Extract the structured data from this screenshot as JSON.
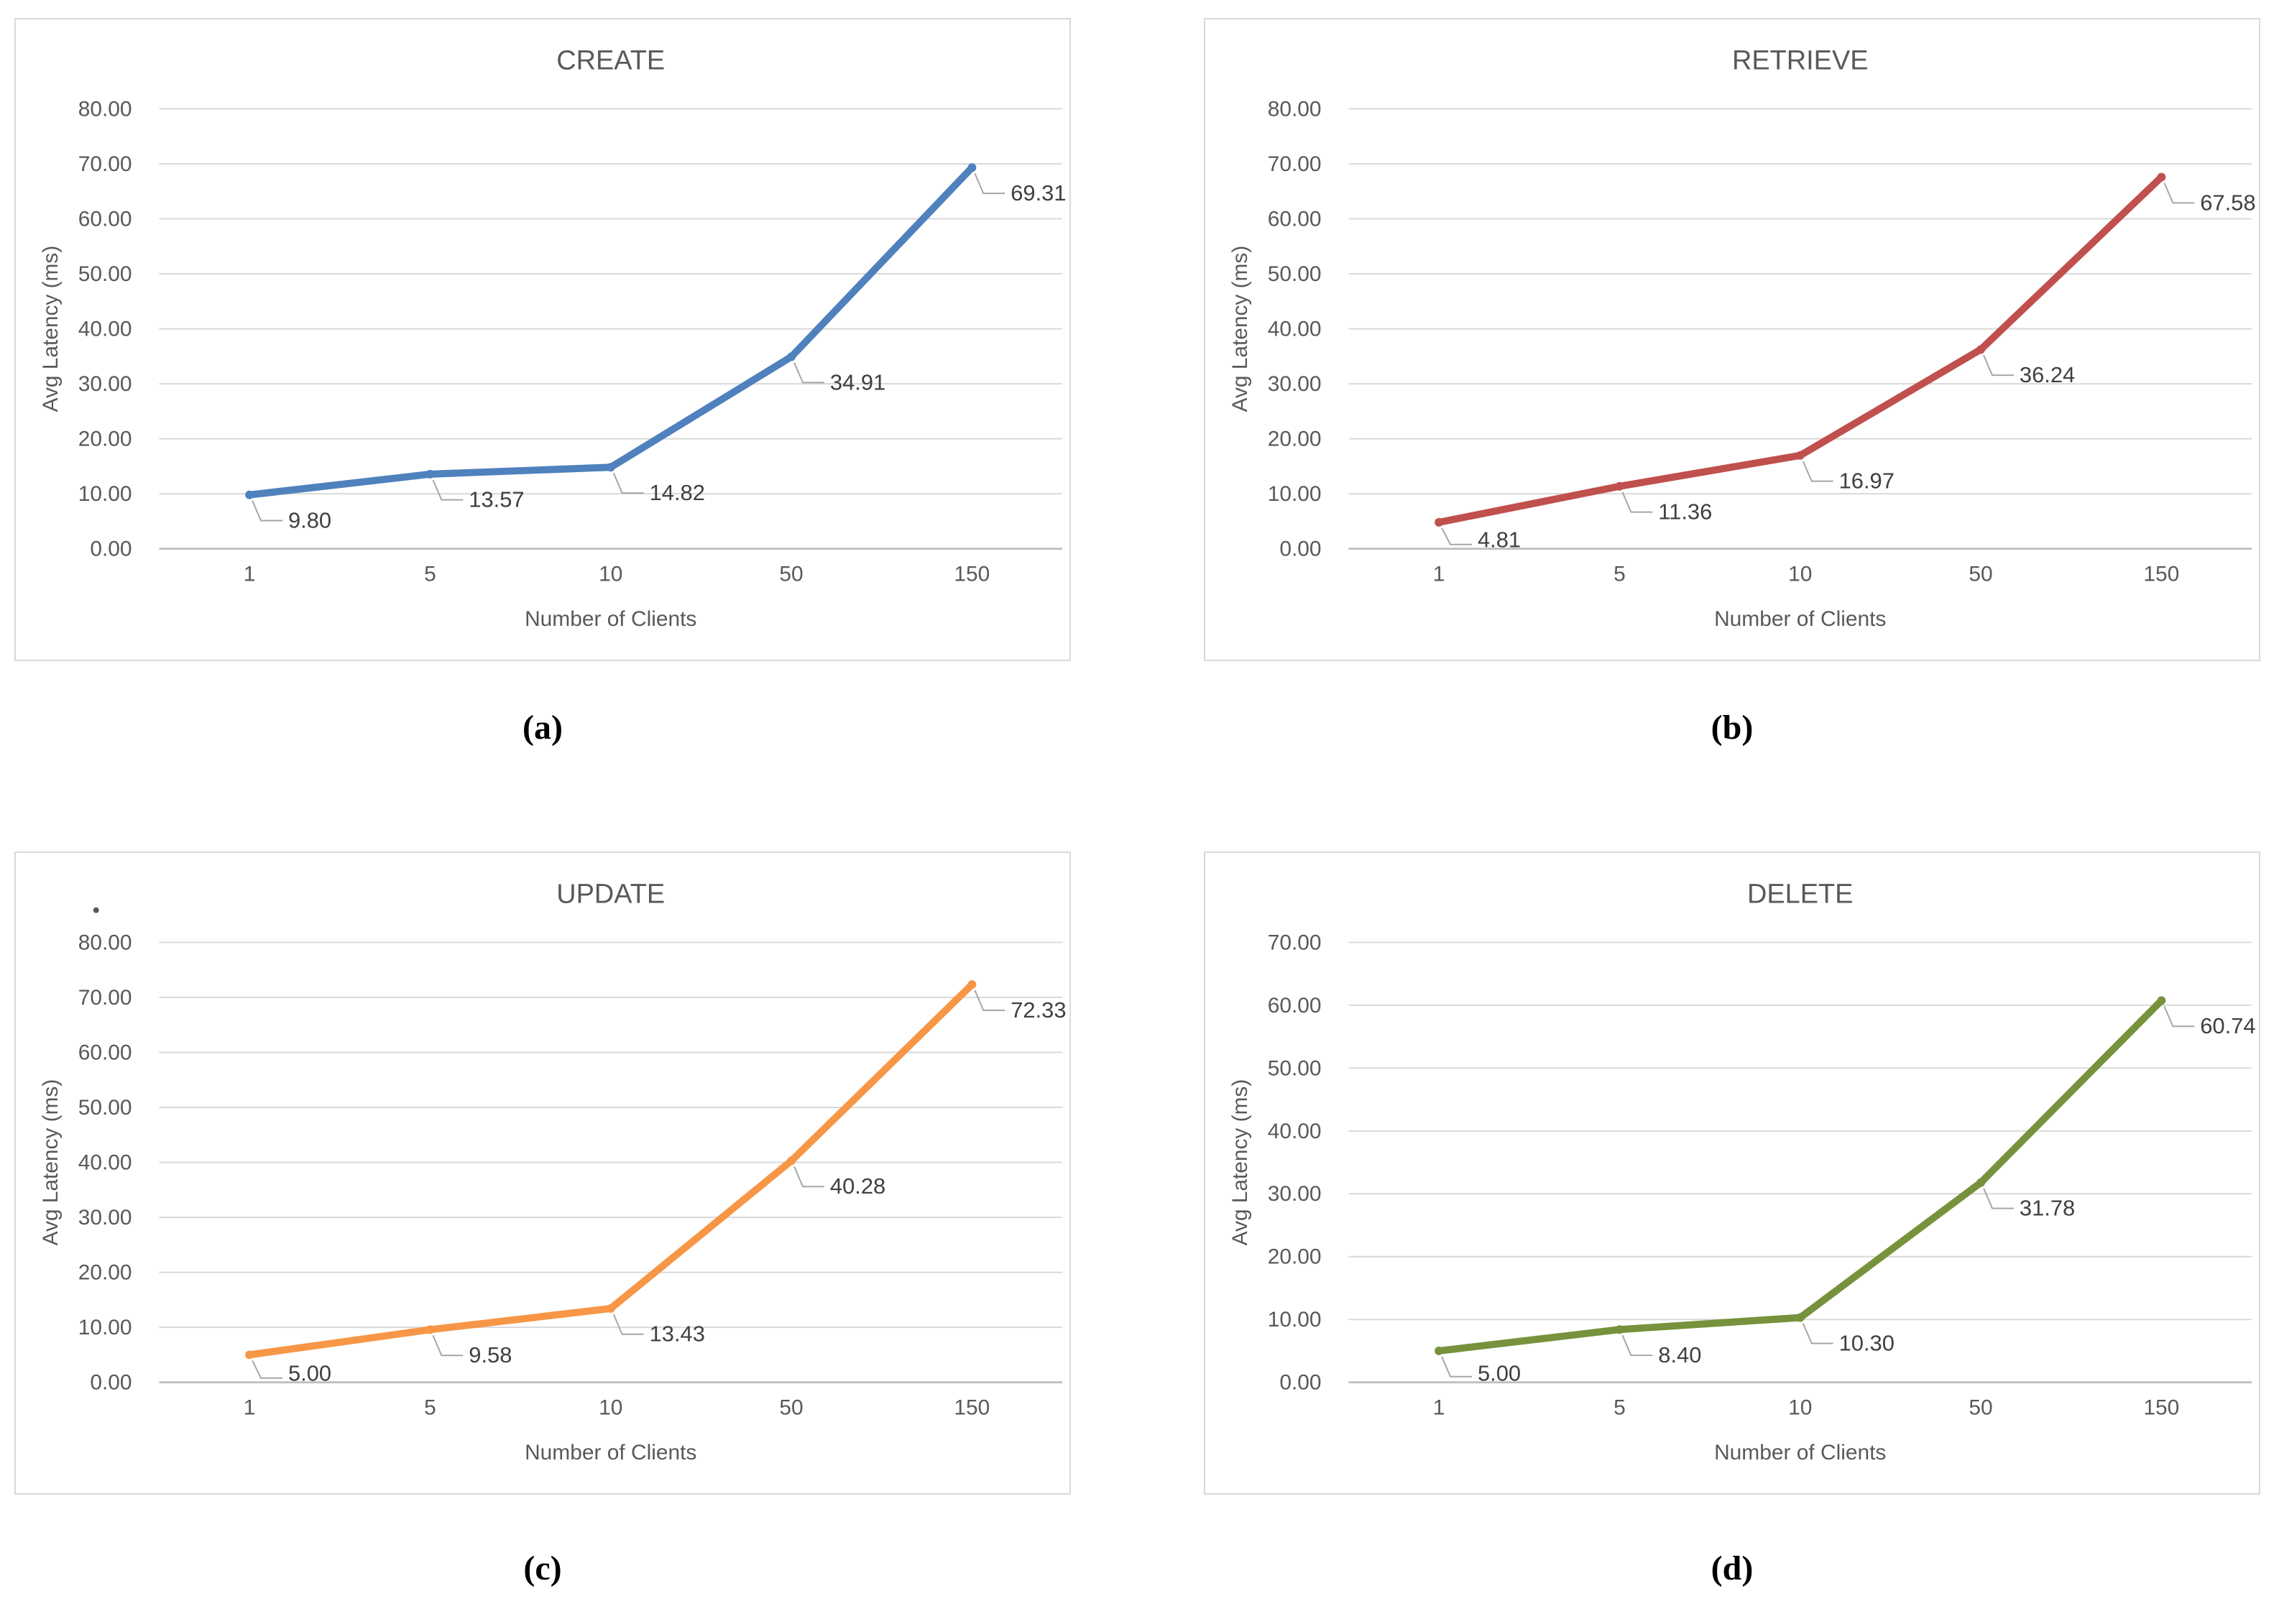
{
  "page": {
    "background": "#ffffff"
  },
  "captions": [
    "(a)",
    "(b)",
    "(c)",
    "(d)"
  ],
  "style": {
    "title_color": "#595959",
    "tick_label_color": "#595959",
    "axis_title_color": "#595959",
    "data_label_color": "#404040",
    "grid_color": "#d9d9d9",
    "axis_line_color": "#bfbfbf",
    "callout_color": "#a6a6a6",
    "panel_border_color": "#d9d9d9"
  },
  "chart_data": [
    {
      "type": "line",
      "title": "CREATE",
      "categories": [
        "1",
        "5",
        "10",
        "50",
        "150"
      ],
      "values": [
        9.8,
        13.57,
        14.82,
        34.91,
        69.31
      ],
      "data_labels": [
        "9.80",
        "13.57",
        "14.82",
        "34.91",
        "69.31"
      ],
      "xlabel": "Number of Clients",
      "ylabel": "Avg Latency (ms)",
      "ylim": [
        0,
        80
      ],
      "ytick_step": 10,
      "grid": true,
      "legend": "none",
      "line_color": "#4F81BD",
      "stray_dot": false
    },
    {
      "type": "line",
      "title": "RETRIEVE",
      "categories": [
        "1",
        "5",
        "10",
        "50",
        "150"
      ],
      "values": [
        4.81,
        11.36,
        16.97,
        36.24,
        67.58
      ],
      "data_labels": [
        "4.81",
        "11.36",
        "16.97",
        "36.24",
        "67.58"
      ],
      "xlabel": "Number of Clients",
      "ylabel": "Avg Latency (ms)",
      "ylim": [
        0,
        80
      ],
      "ytick_step": 10,
      "grid": true,
      "legend": "none",
      "line_color": "#C0504D",
      "stray_dot": false
    },
    {
      "type": "line",
      "title": "UPDATE",
      "categories": [
        "1",
        "5",
        "10",
        "50",
        "150"
      ],
      "values": [
        5.0,
        9.58,
        13.43,
        40.28,
        72.33
      ],
      "data_labels": [
        "5.00",
        "9.58",
        "13.43",
        "40.28",
        "72.33"
      ],
      "xlabel": "Number of Clients",
      "ylabel": "Avg Latency (ms)",
      "ylim": [
        0,
        80
      ],
      "ytick_step": 10,
      "grid": true,
      "legend": "none",
      "line_color": "#F79646",
      "stray_dot": true
    },
    {
      "type": "line",
      "title": "DELETE",
      "categories": [
        "1",
        "5",
        "10",
        "50",
        "150"
      ],
      "values": [
        5.0,
        8.4,
        10.3,
        31.78,
        60.74
      ],
      "data_labels": [
        "5.00",
        "8.40",
        "10.30",
        "31.78",
        "60.74"
      ],
      "xlabel": "Number of Clients",
      "ylabel": "Avg Latency (ms)",
      "ylim": [
        0,
        70
      ],
      "ytick_step": 10,
      "grid": true,
      "legend": "none",
      "line_color": "#76923C",
      "stray_dot": false
    }
  ]
}
